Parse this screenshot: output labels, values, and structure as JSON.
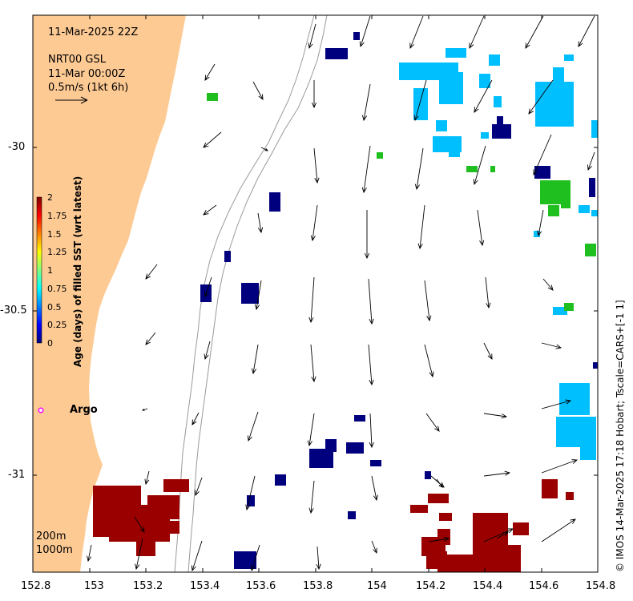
{
  "header": {
    "timestamp": "11-Mar-2025 22Z",
    "product": "NRT00 GSL",
    "current_time": "11-Mar 00:00Z",
    "scale_label": "0.5m/s (1kt 6h)"
  },
  "axes": {
    "x_ticks": [
      "152.8",
      "153",
      "153.2",
      "153.4",
      "153.6",
      "153.8",
      "154",
      "154.2",
      "154.4",
      "154.6",
      "154.8"
    ],
    "y_ticks": [
      "-30",
      "-30.5",
      "-31"
    ],
    "x_range": [
      152.8,
      154.8
    ],
    "y_range": [
      -31.3,
      -29.58
    ]
  },
  "colorbar": {
    "title": "Age (days) of filled SST (wrt latest)",
    "ticks": [
      "2",
      "1.75",
      "1.5",
      "1.25",
      "1",
      "0.75",
      "0.5",
      "0.25",
      "0"
    ],
    "range": [
      0,
      2
    ],
    "colormap": [
      "#00007f",
      "#0000ff",
      "#007fff",
      "#00ffff",
      "#7fff7f",
      "#ffff00",
      "#ff7f00",
      "#ff0000",
      "#7f0000"
    ]
  },
  "legend": {
    "argo_label": "Argo",
    "isobath_200": "200m",
    "isobath_1000": "1000m"
  },
  "credit": "© IMOS 14-Mar-2025 17:18 Hobart; Tscale=CARS+[-1 1]",
  "colors": {
    "land": "#fdca94",
    "argo_marker": "#ff00ff",
    "isobath": "#9a9a9a"
  }
}
